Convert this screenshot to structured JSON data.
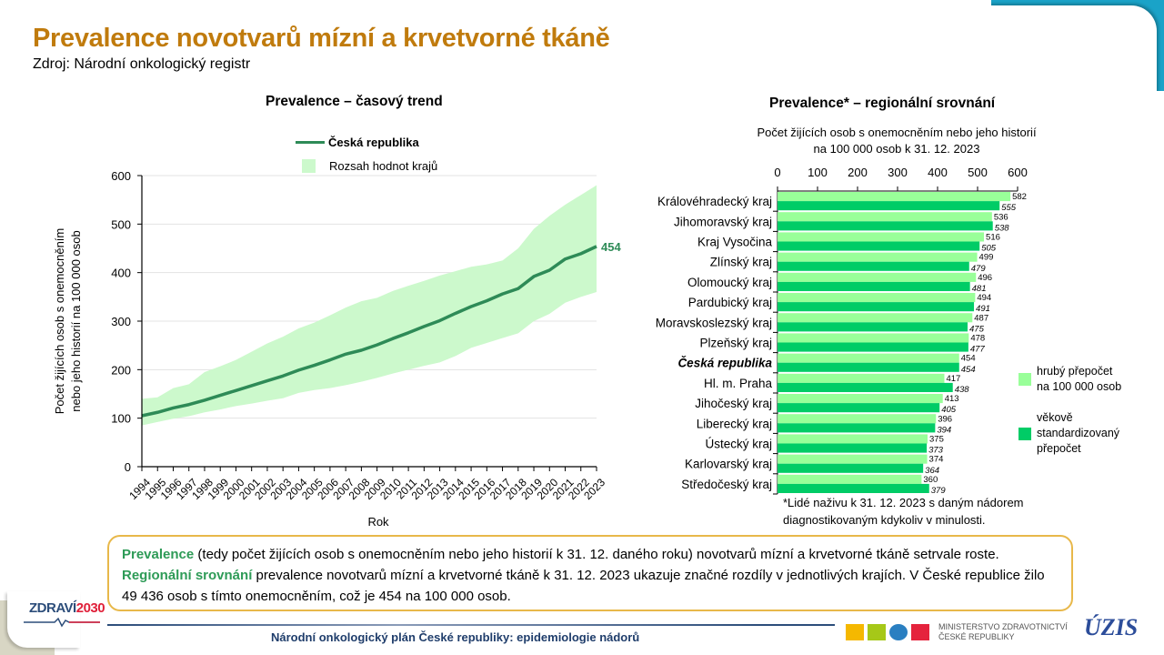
{
  "page": {
    "title": "Prevalence novotvarů mízní a krvetvorné tkáně",
    "source": "Zdroj: Národní onkologický registr"
  },
  "colors": {
    "title": "#c07b0d",
    "line": "#2e8b57",
    "range_fill": "#ccf9cc",
    "bar_crude": "#99ff99",
    "bar_std": "#00cc66",
    "highlight_text": "#2e9b57",
    "box_border": "#e8b84a",
    "footer_text": "#1f3d6b"
  },
  "chart_data": [
    {
      "type": "line",
      "title": "Prevalence – časový trend",
      "xlabel": "Rok",
      "ylabel": "Počet žijících osob s onemocněním nebo jeho historií na 100 000 osob",
      "ylim": [
        0,
        600
      ],
      "yticks": [
        0,
        100,
        200,
        300,
        400,
        500,
        600
      ],
      "grid": true,
      "legend": {
        "placement": "top",
        "line_label": "Česká republika",
        "area_label": "Rozsah hodnot krajů"
      },
      "x": [
        "1994",
        "1995",
        "1996",
        "1997",
        "1998",
        "1999",
        "2000",
        "2001",
        "2002",
        "2003",
        "2004",
        "2005",
        "2006",
        "2007",
        "2008",
        "2009",
        "2010",
        "2011",
        "2012",
        "2013",
        "2014",
        "2015",
        "2016",
        "2017",
        "2018",
        "2019",
        "2020",
        "2021",
        "2022",
        "2023"
      ],
      "series": [
        {
          "name": "Česká republika",
          "values": [
            105,
            112,
            121,
            128,
            137,
            147,
            157,
            167,
            177,
            187,
            199,
            209,
            220,
            232,
            240,
            251,
            264,
            276,
            289,
            301,
            316,
            330,
            342,
            356,
            367,
            392,
            405,
            428,
            439,
            454
          ]
        },
        {
          "name": "Rozsah hodnot krajů (max)",
          "values": [
            140,
            143,
            162,
            170,
            195,
            207,
            220,
            237,
            254,
            268,
            285,
            297,
            312,
            328,
            341,
            348,
            362,
            373,
            383,
            394,
            403,
            412,
            417,
            425,
            450,
            490,
            517,
            540,
            560,
            580
          ]
        },
        {
          "name": "Rozsah hodnot krajů (min)",
          "values": [
            85,
            92,
            99,
            104,
            112,
            118,
            125,
            130,
            136,
            141,
            152,
            158,
            162,
            168,
            175,
            183,
            192,
            200,
            208,
            215,
            228,
            245,
            255,
            265,
            275,
            300,
            315,
            338,
            350,
            360
          ]
        }
      ],
      "end_label": "454"
    },
    {
      "type": "bar",
      "orientation": "horizontal",
      "title": "Prevalence* – regionální srovnání",
      "xlabel": "Počet žijících osob s onemocněním nebo jeho historií na 100 000 osob k 31. 12. 2023",
      "xlim": [
        0,
        600
      ],
      "xticks": [
        0,
        100,
        200,
        300,
        400,
        500,
        600
      ],
      "xaxis_position": "top",
      "legend": {
        "placement": "right"
      },
      "categories": [
        "Královéhradecký kraj",
        "Jihomoravský kraj",
        "Kraj Vysočina",
        "Zlínský kraj",
        "Olomoucký kraj",
        "Pardubický kraj",
        "Moravskoslezský kraj",
        "Plzeňský kraj",
        "Česká republika",
        "Hl. m. Praha",
        "Jihočeský kraj",
        "Liberecký kraj",
        "Ústecký kraj",
        "Karlovarský kraj",
        "Středočeský kraj"
      ],
      "highlight_category": "Česká republika",
      "series": [
        {
          "name": "hrubý přepočet na 100 000 osob",
          "values": [
            582,
            536,
            516,
            499,
            496,
            494,
            487,
            478,
            454,
            417,
            413,
            396,
            375,
            374,
            360
          ]
        },
        {
          "name": "věkově standardizovaný přepočet",
          "values": [
            555,
            538,
            505,
            479,
            481,
            491,
            475,
            477,
            454,
            438,
            405,
            394,
            373,
            364,
            379
          ]
        }
      ],
      "footnote": [
        "*Lidé naživu k 31. 12. 2023 s daným nádorem",
        "diagnostikovaným kdykoliv v minulosti."
      ]
    }
  ],
  "legend_bar": {
    "crude": [
      "hrubý přepočet",
      "na 100 000 osob"
    ],
    "std": [
      "věkově",
      "standardizovaný",
      "přepočet"
    ]
  },
  "summary": {
    "hl1": "Prevalence",
    "t1": " (tedy počet žijících osob s onemocněním nebo jeho historií k 31. 12. daného roku) novotvarů mízní a krvetvorné tkáně setrvale roste. ",
    "hl2": "Regionální srovnání",
    "t2": " prevalence novotvarů mízní a krvetvorné tkáně k 31. 12. 2023 ukazuje značné rozdíly v jednotlivých krajích. V České republice žilo 49 436 osob s tímto onemocněním, což je 454 na 100 000 osob."
  },
  "footer": {
    "text": "Národní onkologický plán České republiky: epidemiologie nádorů",
    "logo_left_a": "ZDRAVÍ",
    "logo_left_b": "2030",
    "mz_line1": "MINISTERSTVO ZDRAVOTNICTVÍ",
    "mz_line2": "ČESKÉ REPUBLIKY",
    "uzis": "ÚZIS"
  }
}
